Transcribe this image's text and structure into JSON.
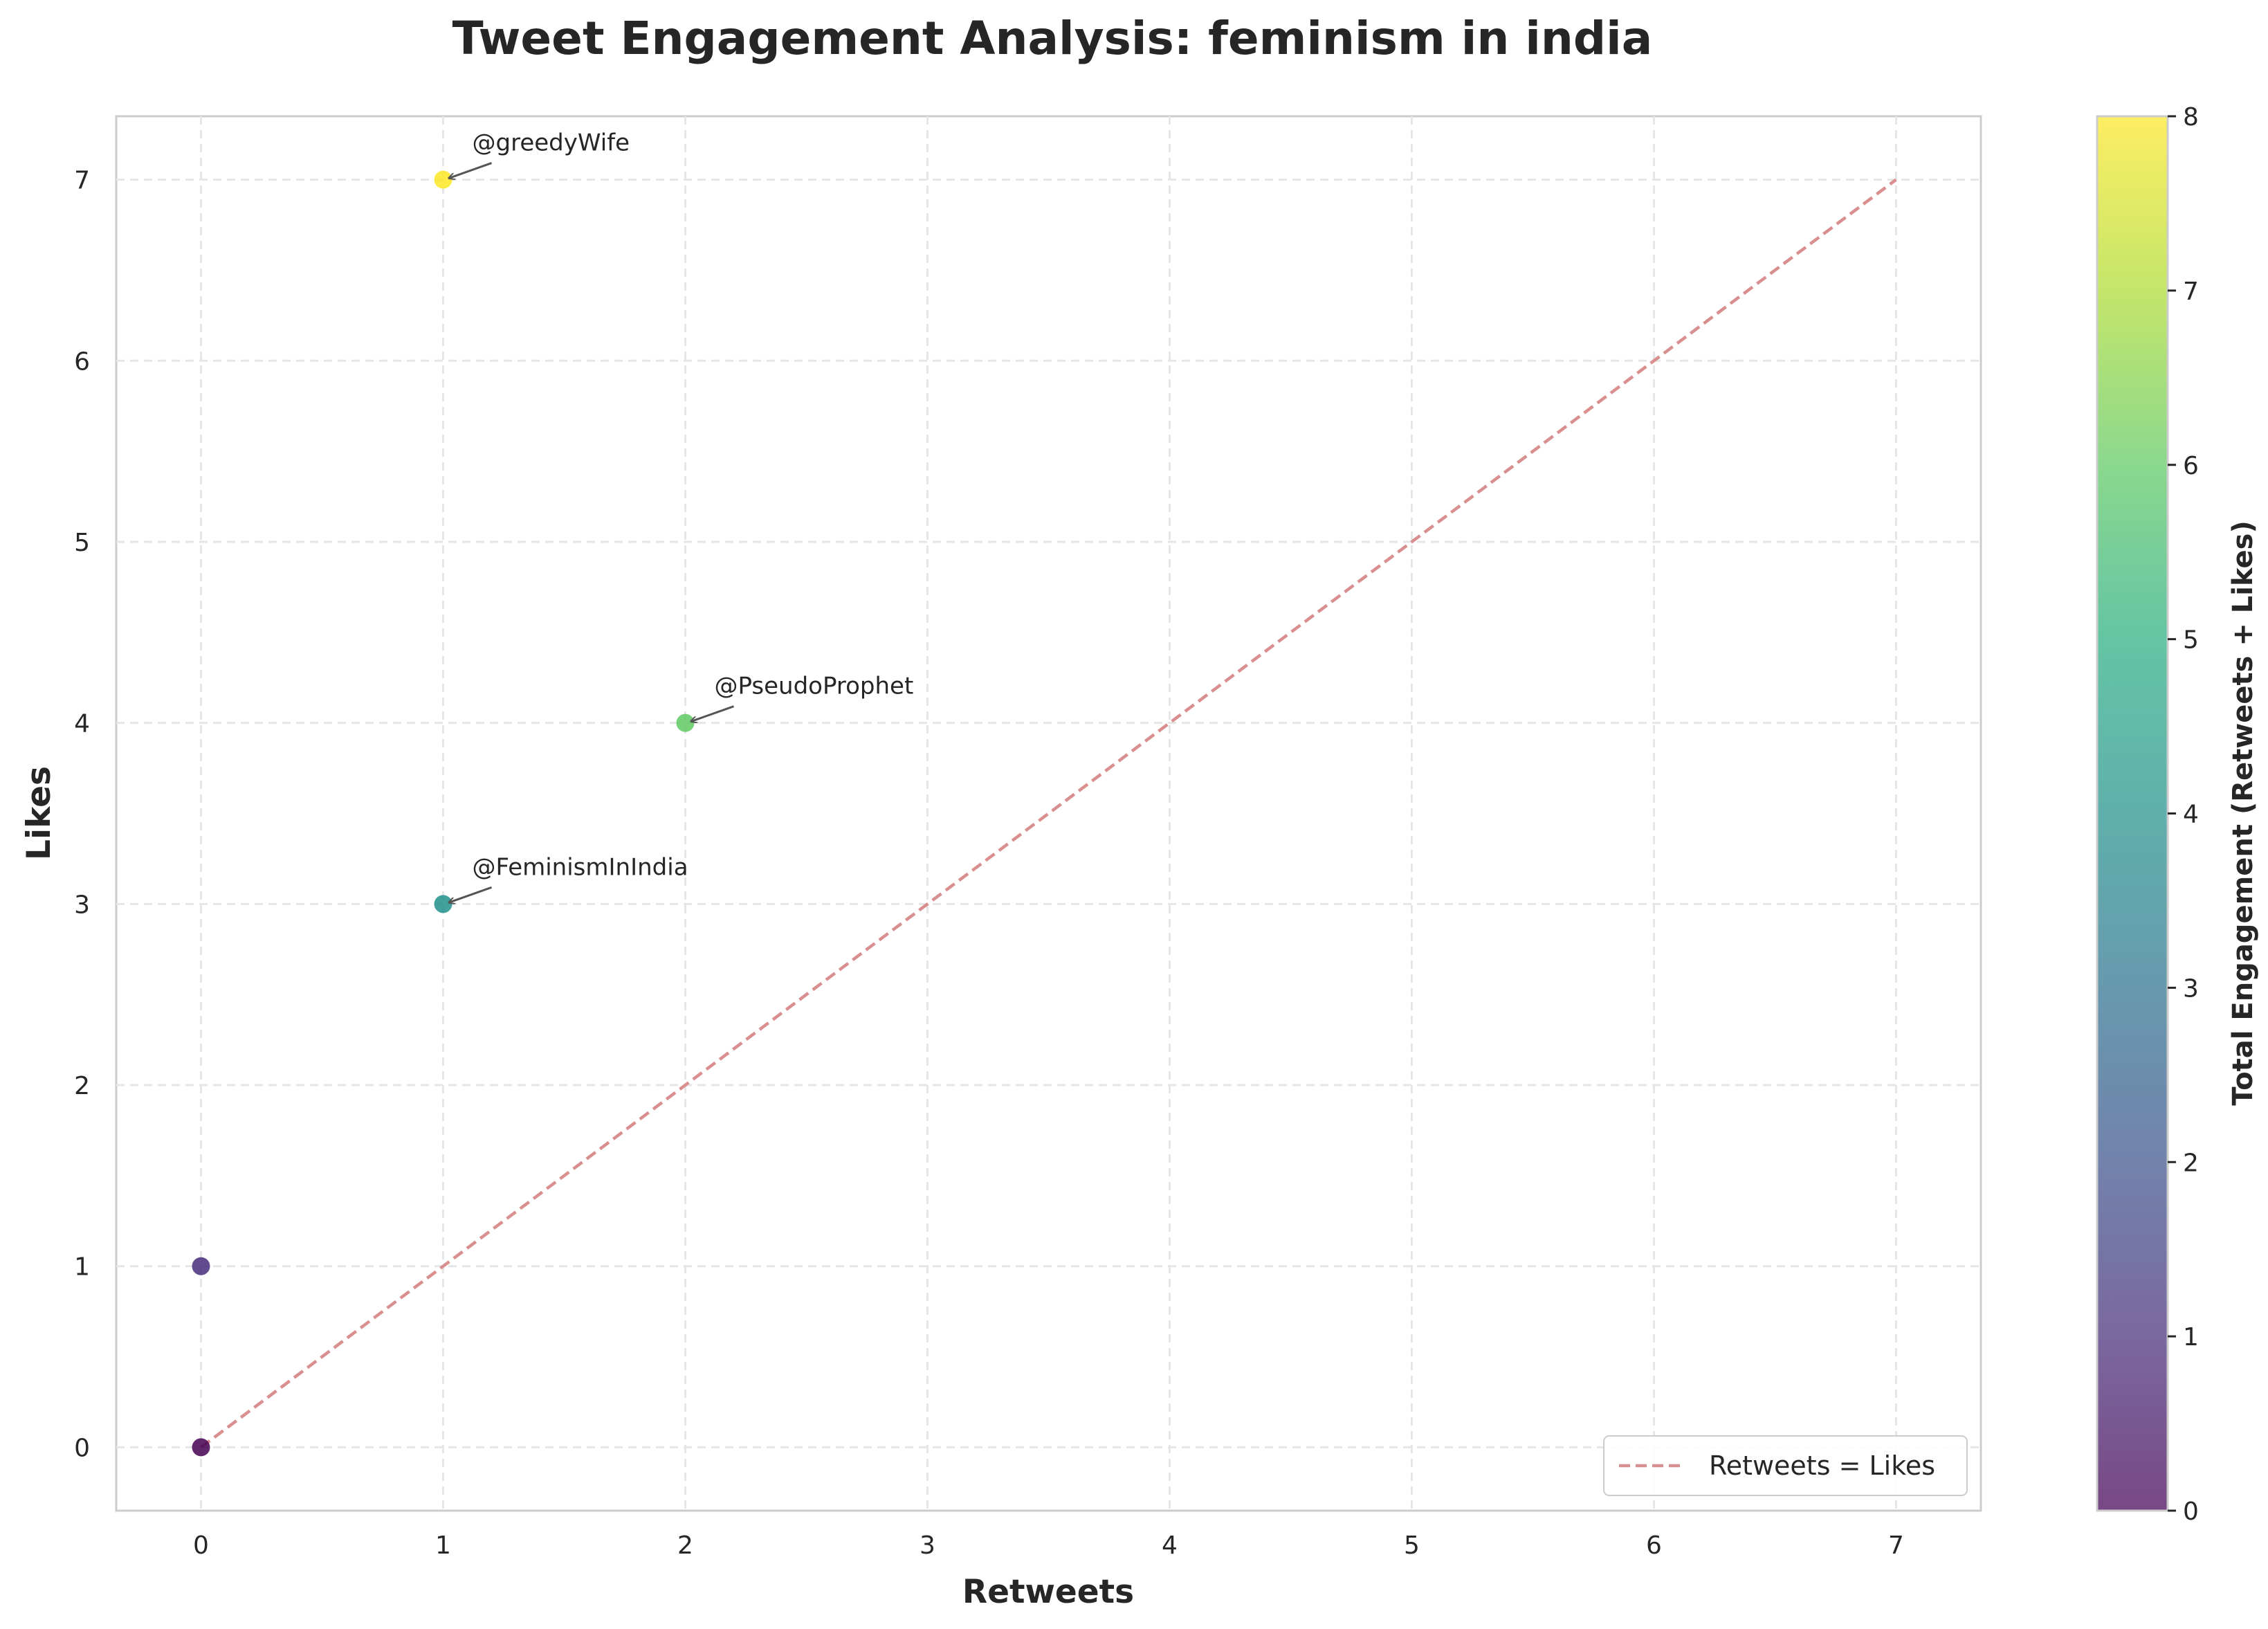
{
  "chart_data": {
    "type": "scatter",
    "title": "Tweet Engagement Analysis: feminism in india",
    "xlabel": "Retweets",
    "ylabel": "Likes",
    "xlim": [
      -0.35,
      7.35
    ],
    "ylim": [
      -0.35,
      7.35
    ],
    "xticks": [
      0,
      1,
      2,
      3,
      4,
      5,
      6,
      7
    ],
    "yticks": [
      0,
      1,
      2,
      3,
      4,
      5,
      6,
      7
    ],
    "grid": true,
    "points": [
      {
        "x": 0,
        "y": 0,
        "engagement": 0,
        "annotation": ""
      },
      {
        "x": 0,
        "y": 1,
        "engagement": 1,
        "annotation": ""
      },
      {
        "x": 1,
        "y": 3,
        "engagement": 4,
        "annotation": "@FeminismInIndia"
      },
      {
        "x": 2,
        "y": 4,
        "engagement": 6,
        "annotation": "@PseudoProphet"
      },
      {
        "x": 1,
        "y": 7,
        "engagement": 8,
        "annotation": "@greedyWife"
      }
    ],
    "reference_line": {
      "label": "Retweets = Likes",
      "from": [
        0,
        0
      ],
      "to": [
        7,
        7
      ],
      "color": "#d98f8f",
      "style": "dashed"
    },
    "legend": {
      "placement": "lower-right",
      "entries": [
        "Retweets = Likes"
      ]
    },
    "colorbar": {
      "label": "Total Engagement (Retweets + Likes)",
      "min": 0,
      "max": 8,
      "ticks": [
        0,
        1,
        2,
        3,
        4,
        5,
        6,
        7,
        8
      ],
      "colormap": "viridis"
    }
  }
}
